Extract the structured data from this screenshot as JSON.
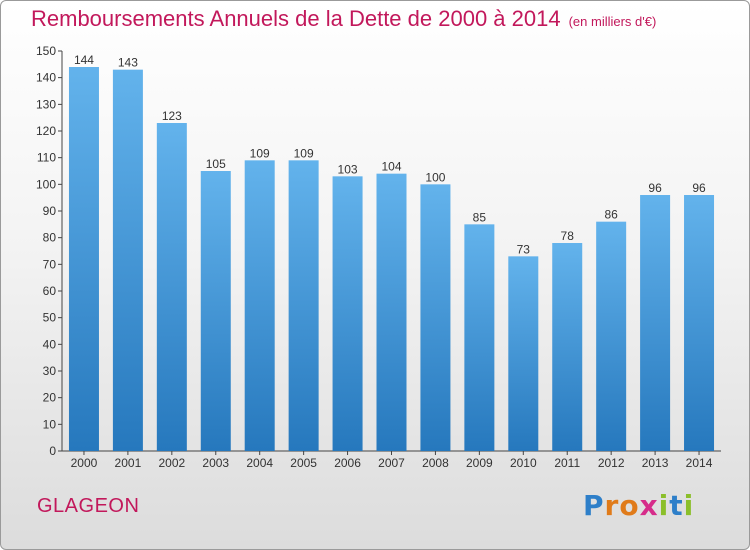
{
  "title": "Remboursements Annuels de la Dette de 2000 à 2014",
  "unit": "(en milliers d'€)",
  "commune": "GLAGEON",
  "logo": {
    "letters": [
      "P",
      "r",
      "o",
      "x",
      "i",
      "t",
      "i"
    ],
    "colors": [
      "#2e7fc9",
      "#e07b1a",
      "#e07b1a",
      "#d62c8a",
      "#8bbf2a",
      "#2e7fc9",
      "#8bbf2a"
    ]
  },
  "colors": {
    "bar_top": "#63b3ec",
    "bar_bottom": "#2678bd",
    "title": "#c2185b"
  },
  "chart_data": {
    "type": "bar",
    "title": "Remboursements Annuels de la Dette de 2000 à 2014",
    "subtitle": "(en milliers d'€)",
    "xlabel": "",
    "ylabel": "",
    "ylim": [
      0,
      150
    ],
    "yticks": [
      0,
      10,
      20,
      30,
      40,
      50,
      60,
      70,
      80,
      90,
      100,
      110,
      120,
      130,
      140,
      150
    ],
    "grid": false,
    "categories": [
      "2000",
      "2001",
      "2002",
      "2003",
      "2004",
      "2005",
      "2006",
      "2007",
      "2008",
      "2009",
      "2010",
      "2011",
      "2012",
      "2013",
      "2014"
    ],
    "values": [
      144,
      143,
      123,
      105,
      109,
      109,
      103,
      104,
      100,
      85,
      73,
      78,
      86,
      96,
      96
    ]
  }
}
